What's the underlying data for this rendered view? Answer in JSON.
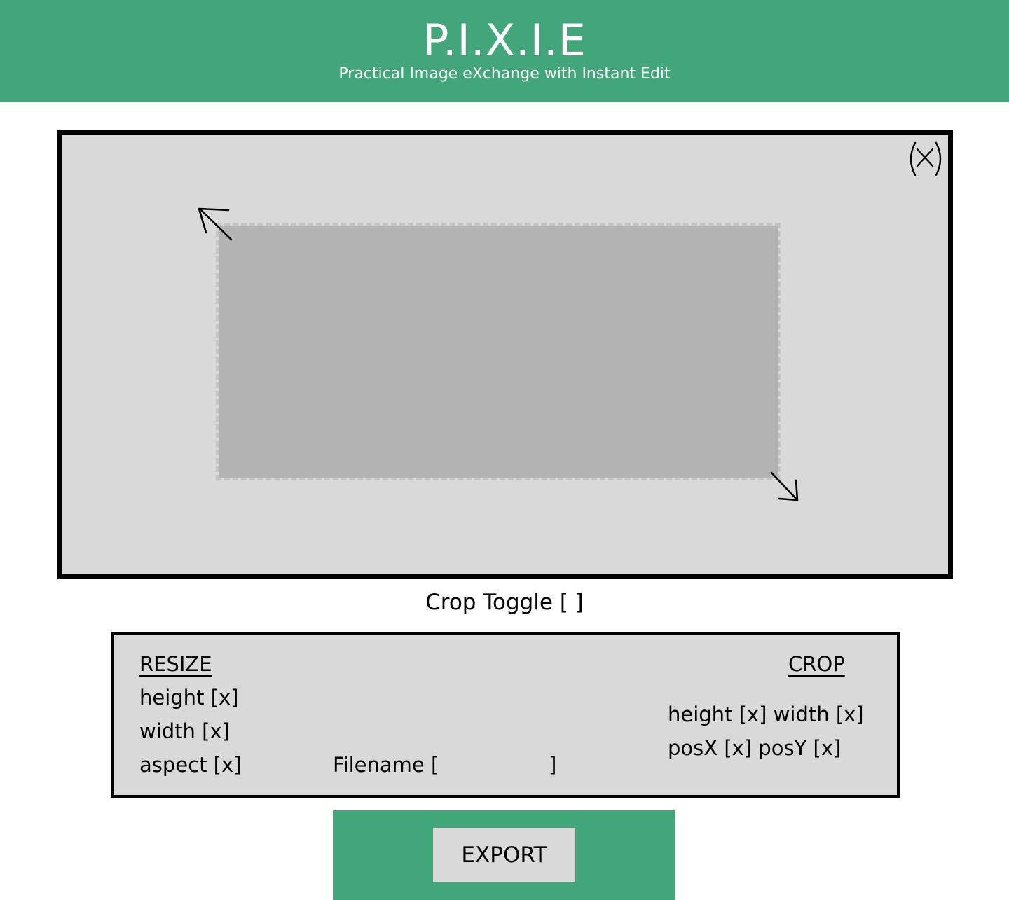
{
  "header": {
    "title": "P.I.X.I.E",
    "subtitle": "Practical Image eXchange with Instant Edit"
  },
  "canvas": {
    "close_icon": "close-circle-icon",
    "handles": [
      "resize-handle-top-left-icon",
      "resize-handle-bottom-right-icon"
    ]
  },
  "crop_toggle": {
    "label": "Crop Toggle [ ]"
  },
  "resize": {
    "heading": "RESIZE",
    "height": "height [x]",
    "width": "width [x]",
    "aspect": "aspect [x]"
  },
  "filename": {
    "label": "Filename [                 ]"
  },
  "crop": {
    "heading": "CROP",
    "size": "height [x] width [x]",
    "position": "posX [x] posY [x]"
  },
  "export": {
    "label": "EXPORT"
  },
  "colors": {
    "accent": "#41a77b",
    "panel": "#d9d9d9",
    "crop_region": "#b3b3b3"
  }
}
